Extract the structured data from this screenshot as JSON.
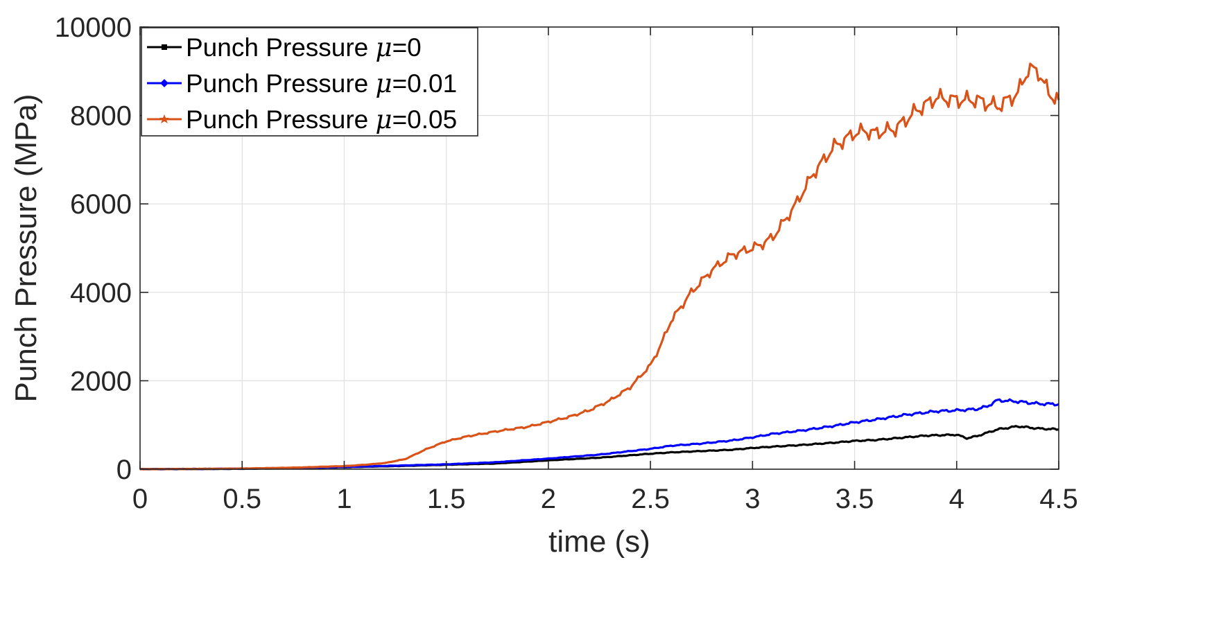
{
  "chart_data": {
    "type": "line",
    "title": "",
    "xlabel": "time (s)",
    "ylabel": "Punch Pressure (MPa)",
    "xlim": [
      0,
      4.5
    ],
    "ylim": [
      0,
      10000
    ],
    "grid": true,
    "legend_position": "top-left",
    "x_ticks": [
      0,
      0.5,
      1,
      1.5,
      2,
      2.5,
      3,
      3.5,
      4,
      4.5
    ],
    "x_tick_labels": [
      "0",
      "0.5",
      "1",
      "1.5",
      "2",
      "2.5",
      "3",
      "3.5",
      "4",
      "4.5"
    ],
    "y_ticks": [
      0,
      2000,
      4000,
      6000,
      8000,
      10000
    ],
    "y_tick_labels": [
      "0",
      "2000",
      "4000",
      "6000",
      "8000",
      "10000"
    ],
    "series": [
      {
        "name": "Punch Pressure μ=0",
        "legend_prefix": "Punch Pressure ",
        "legend_symbol": "μ",
        "legend_suffix": "=0",
        "color": "#000000",
        "x": [
          0,
          0.25,
          0.5,
          0.75,
          1.0,
          1.25,
          1.5,
          1.75,
          2.0,
          2.25,
          2.5,
          2.6,
          2.75,
          2.9,
          3.0,
          3.1,
          3.25,
          3.4,
          3.5,
          3.6,
          3.75,
          3.85,
          4.0,
          4.05,
          4.1,
          4.2,
          4.3,
          4.4,
          4.5
        ],
        "y": [
          0,
          5,
          10,
          25,
          45,
          70,
          100,
          130,
          200,
          260,
          350,
          380,
          410,
          440,
          480,
          510,
          550,
          600,
          640,
          660,
          720,
          760,
          780,
          700,
          750,
          900,
          970,
          920,
          900
        ]
      },
      {
        "name": "Punch Pressure μ=0.01",
        "legend_prefix": "Punch Pressure ",
        "legend_symbol": "μ",
        "legend_suffix": "=0.01",
        "color": "#0000ff",
        "x": [
          0,
          0.25,
          0.5,
          0.75,
          1.0,
          1.25,
          1.5,
          1.75,
          2.0,
          2.25,
          2.5,
          2.6,
          2.75,
          2.9,
          3.0,
          3.1,
          3.25,
          3.4,
          3.5,
          3.6,
          3.75,
          3.9,
          4.0,
          4.1,
          4.15,
          4.2,
          4.3,
          4.4,
          4.5
        ],
        "y": [
          0,
          5,
          12,
          28,
          50,
          80,
          110,
          160,
          240,
          330,
          460,
          530,
          580,
          650,
          720,
          800,
          880,
          980,
          1060,
          1120,
          1230,
          1310,
          1330,
          1360,
          1420,
          1560,
          1530,
          1480,
          1470
        ]
      },
      {
        "name": "Punch Pressure μ=0.05",
        "legend_prefix": "Punch Pressure ",
        "legend_symbol": "μ",
        "legend_suffix": "=0.05",
        "color": "#d95319",
        "x": [
          0,
          0.25,
          0.5,
          0.75,
          1.0,
          1.1,
          1.2,
          1.3,
          1.4,
          1.5,
          1.6,
          1.75,
          1.9,
          2.0,
          2.1,
          2.2,
          2.3,
          2.4,
          2.5,
          2.55,
          2.6,
          2.7,
          2.8,
          2.9,
          3.0,
          3.05,
          3.1,
          3.2,
          3.3,
          3.4,
          3.5,
          3.55,
          3.6,
          3.7,
          3.8,
          3.9,
          4.0,
          4.1,
          4.2,
          4.3,
          4.35,
          4.4,
          4.45,
          4.5
        ],
        "y": [
          0,
          5,
          15,
          35,
          70,
          100,
          140,
          230,
          450,
          630,
          740,
          860,
          960,
          1070,
          1180,
          1330,
          1550,
          1850,
          2350,
          2800,
          3350,
          4000,
          4500,
          4850,
          5000,
          5100,
          5250,
          5900,
          6700,
          7300,
          7600,
          7650,
          7600,
          7700,
          8100,
          8400,
          8350,
          8350,
          8200,
          8500,
          9050,
          9000,
          8500,
          8350
        ]
      }
    ]
  }
}
